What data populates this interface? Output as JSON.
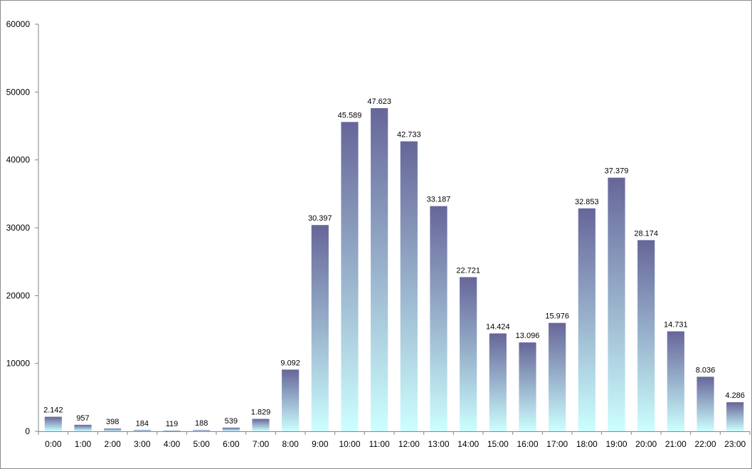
{
  "chart_data": {
    "type": "bar",
    "title": "",
    "xlabel": "",
    "ylabel": "",
    "ylim": [
      0,
      60000
    ],
    "yticks": [
      0,
      10000,
      20000,
      30000,
      40000,
      50000,
      60000
    ],
    "ytick_labels": [
      "0",
      "10000",
      "20000",
      "30000",
      "40000",
      "50000",
      "60000"
    ],
    "grid": false,
    "legend": "none",
    "categories": [
      "0:00",
      "1:00",
      "2:00",
      "3:00",
      "4:00",
      "5:00",
      "6:00",
      "7:00",
      "8:00",
      "9:00",
      "10:00",
      "11:00",
      "12:00",
      "13:00",
      "14:00",
      "15:00",
      "16:00",
      "17:00",
      "18:00",
      "19:00",
      "20:00",
      "21:00",
      "22:00",
      "23:00"
    ],
    "values": [
      2142,
      957,
      398,
      184,
      119,
      188,
      539,
      1829,
      9092,
      30397,
      45589,
      47623,
      42733,
      33187,
      22721,
      14424,
      13096,
      15976,
      32853,
      37379,
      28174,
      14731,
      8036,
      4286
    ],
    "data_labels": [
      "2.142",
      "957",
      "398",
      "184",
      "119",
      "188",
      "539",
      "1.829",
      "9.092",
      "30.397",
      "45.589",
      "47.623",
      "42.733",
      "33.187",
      "22.721",
      "14.424",
      "13.096",
      "15.976",
      "32.853",
      "37.379",
      "28.174",
      "14.731",
      "8.036",
      "4.286"
    ],
    "colors": {
      "bar_top": "#666699",
      "bar_bottom": "#ccffff",
      "axis": "#868686",
      "border": "#8c8c8c"
    }
  }
}
